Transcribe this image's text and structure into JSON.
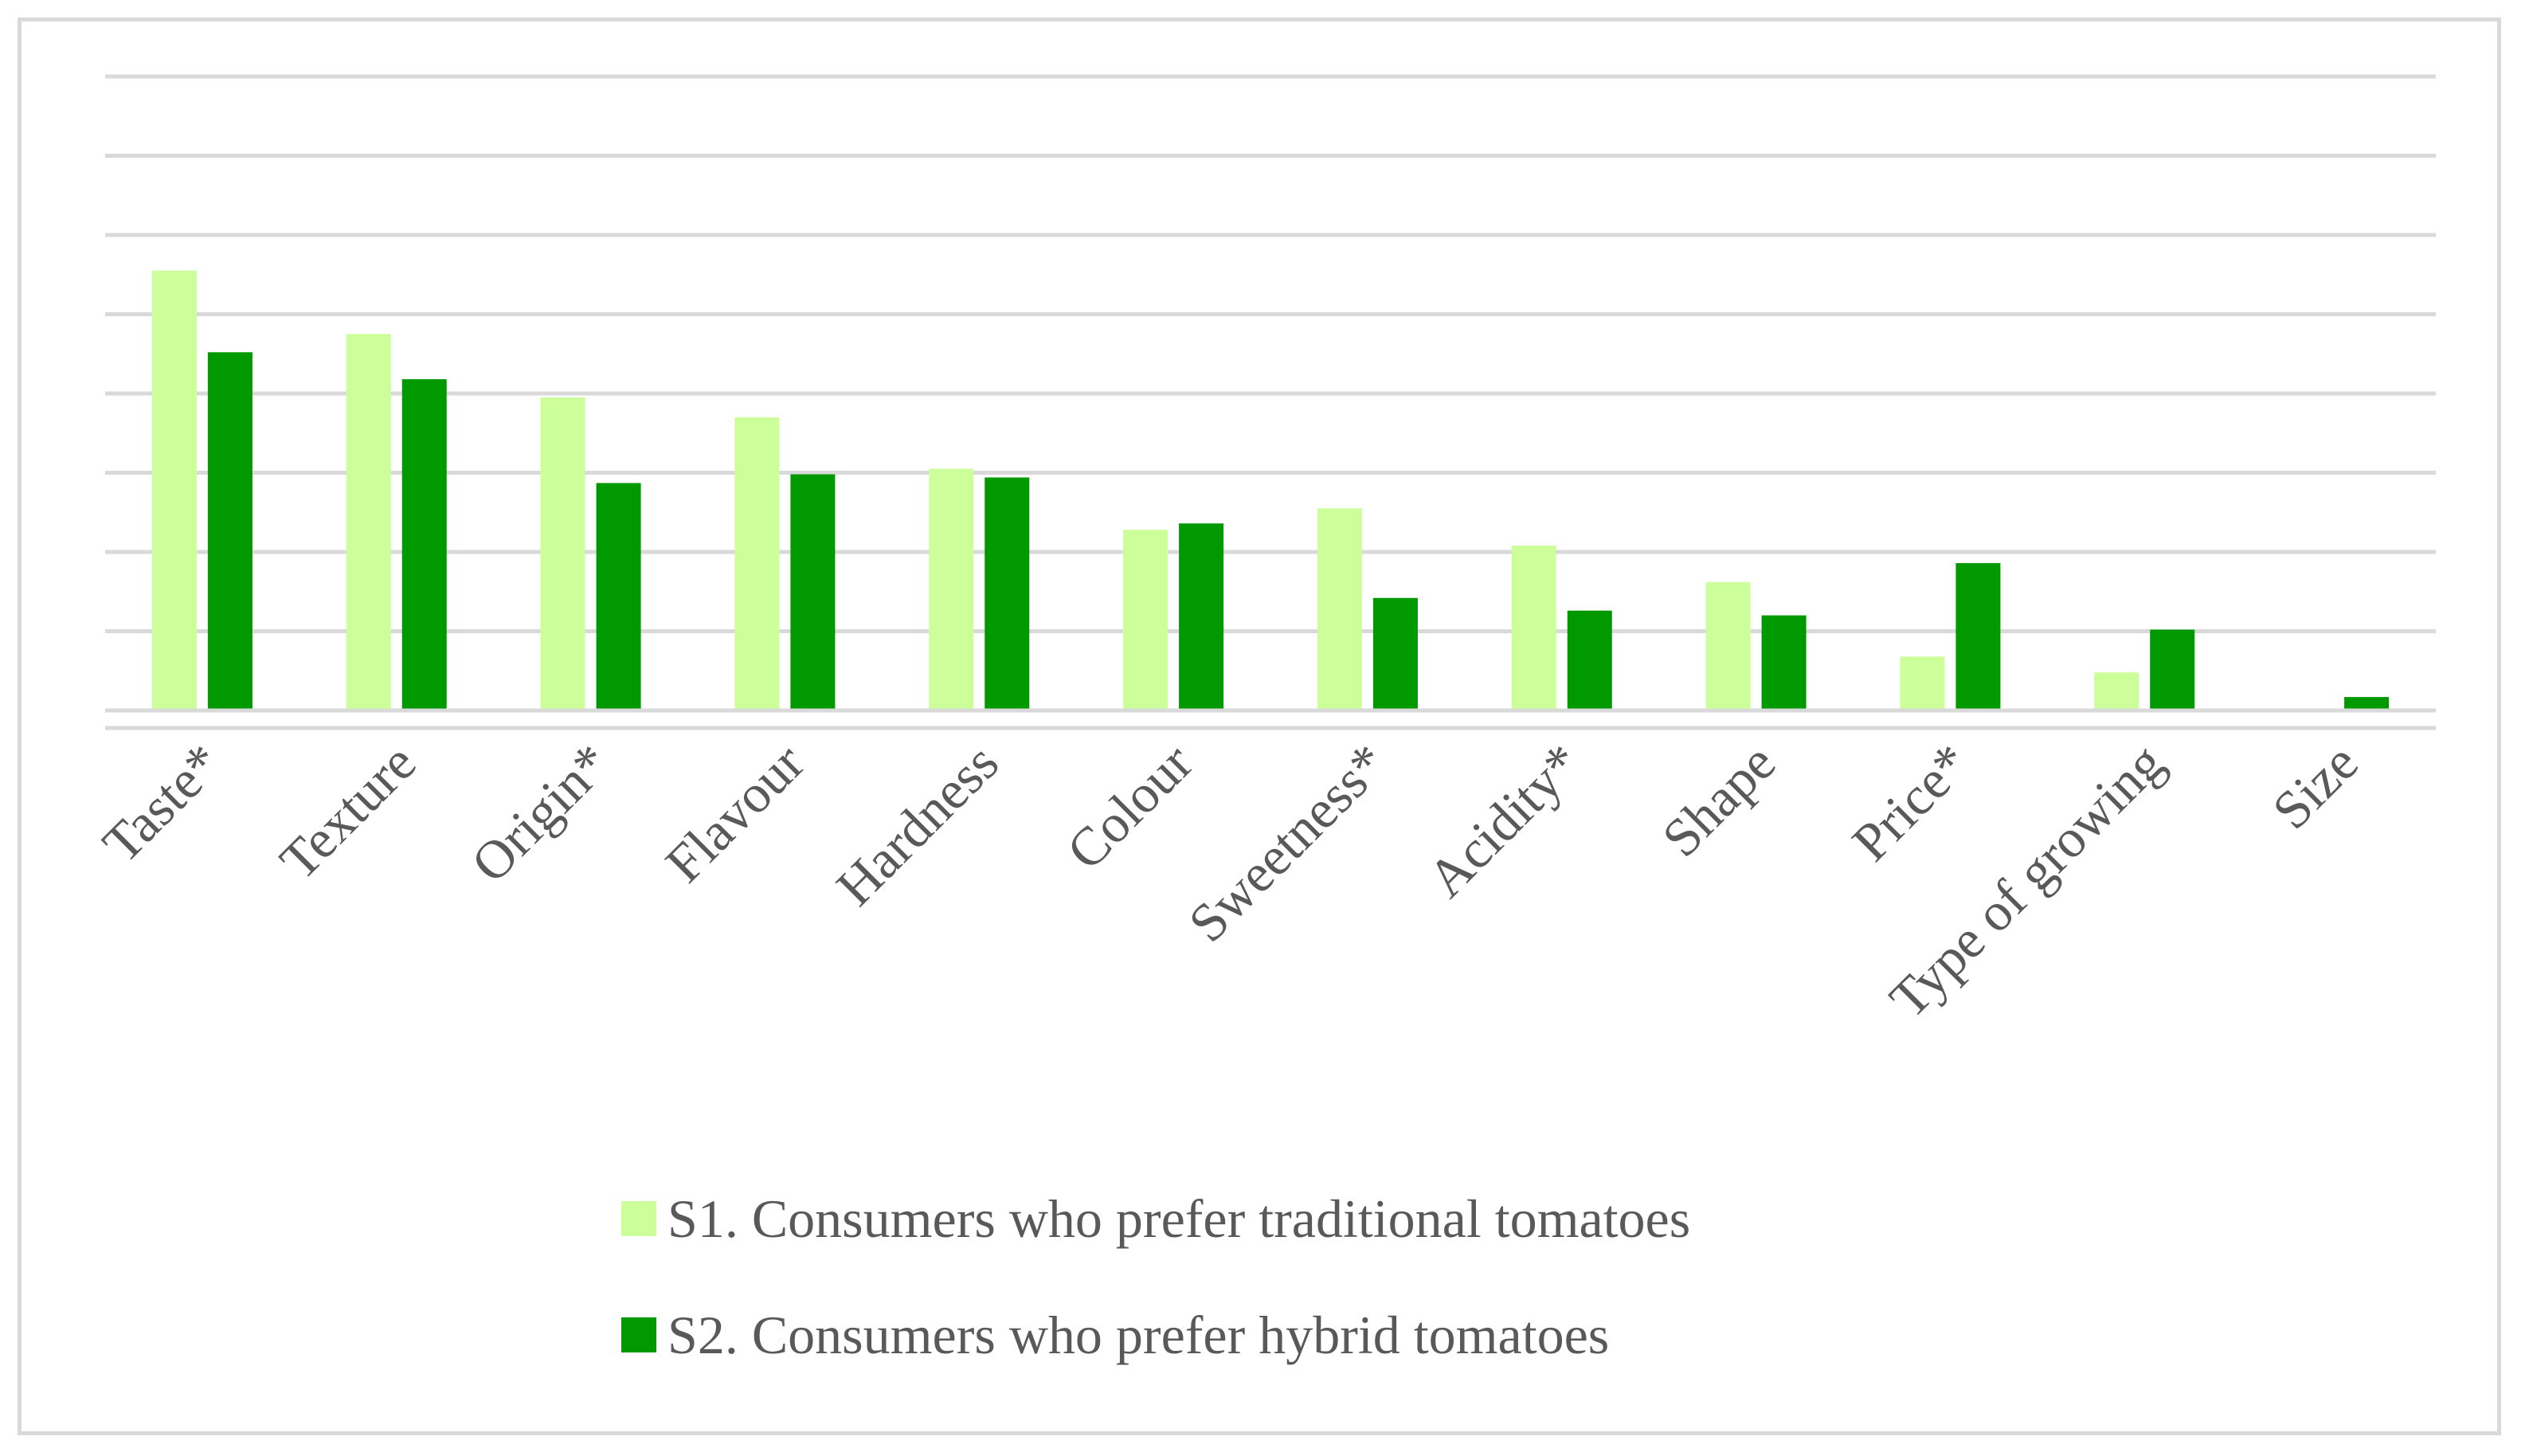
{
  "chart_data": {
    "type": "bar",
    "title": "",
    "xlabel": "",
    "ylabel": "",
    "ylim": [
      0,
      80
    ],
    "grid": true,
    "legend_position": "bottom",
    "categories": [
      "Taste*",
      "Texture",
      "Origin*",
      "Flavour",
      "Hardness",
      "Colour",
      "Sweetness*",
      "Acidity*",
      "Shape",
      "Price*",
      "Type of growing",
      "Size"
    ],
    "series": [
      {
        "name": "S1. Consumers who prefer traditional tomatoes",
        "color": "#ccff99",
        "values": [
          55.5,
          47.5,
          39.5,
          37,
          30.5,
          22.8,
          25.5,
          20.8,
          16.2,
          6.8,
          4.8,
          0
        ]
      },
      {
        "name": "S2. Consumers who prefer hybrid tomatoes",
        "color": "#009900",
        "values": [
          45.2,
          41.8,
          28.7,
          29.8,
          29.4,
          23.6,
          14.2,
          12.6,
          12.0,
          18.6,
          10.2,
          1.7
        ]
      }
    ]
  },
  "style": {
    "gridline_color": "#d9d9d9",
    "text_color": "#595959",
    "border_color": "#d9d9d9"
  }
}
